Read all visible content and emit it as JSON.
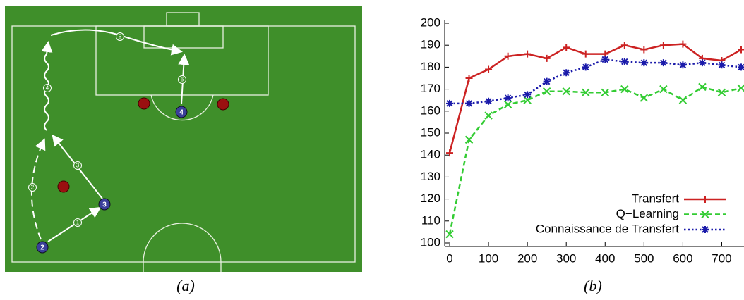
{
  "chart_data": {
    "type": "line",
    "x": [
      0,
      50,
      100,
      150,
      200,
      250,
      300,
      350,
      400,
      450,
      500,
      550,
      600,
      650,
      700,
      750
    ],
    "series": [
      {
        "name": "Transfert",
        "color": "#cc2222",
        "marker": "plus",
        "dash": "solid",
        "values": [
          141,
          175,
          179,
          185,
          186,
          184,
          189,
          186,
          186,
          190,
          188,
          190,
          190.5,
          184,
          183,
          188
        ]
      },
      {
        "name": "Q−Learning",
        "color": "#33cc33",
        "marker": "cross",
        "dash": "dashed",
        "values": [
          104,
          147,
          158,
          163,
          165,
          169,
          169,
          168.5,
          168.5,
          170,
          166,
          170,
          165,
          171,
          168.5,
          170.5
        ]
      },
      {
        "name": "Connaissance de Transfert",
        "color": "#1a1aaa",
        "marker": "star",
        "dash": "dotted",
        "values": [
          163.5,
          163.5,
          164.5,
          166,
          167.5,
          173.5,
          177.5,
          180,
          183.5,
          182.5,
          182,
          182,
          181,
          182,
          181,
          180
        ]
      }
    ],
    "xlim": [
      0,
      750
    ],
    "xticks": [
      0,
      100,
      200,
      300,
      400,
      500,
      600,
      700
    ],
    "ylim": [
      100,
      200
    ],
    "yticks": [
      100,
      110,
      120,
      130,
      140,
      150,
      160,
      170,
      180,
      190,
      200
    ],
    "legend": "lower-right"
  },
  "field": {
    "players": [
      {
        "label": "2"
      },
      {
        "label": "3"
      },
      {
        "label": "4"
      }
    ],
    "passes": [
      "1",
      "2",
      "3",
      "4",
      "5",
      "6"
    ]
  },
  "captions": [
    "(a)",
    "(b)"
  ]
}
